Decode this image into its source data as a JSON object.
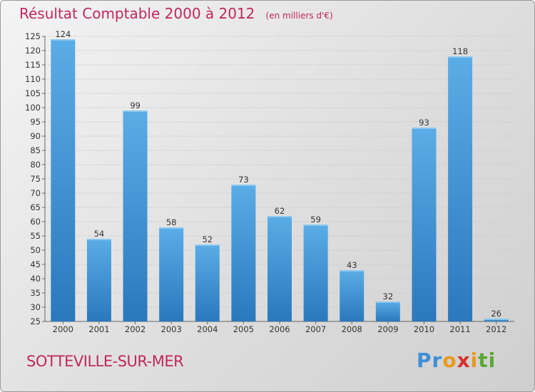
{
  "title": "Résultat Comptable 2000 à 2012",
  "unit_note": "(en milliers d'€)",
  "footer_label": "SOTTEVILLE-SUR-MER",
  "logo": {
    "letters": [
      "P",
      "r",
      "o",
      "x",
      "i",
      "t",
      "i"
    ],
    "colors": [
      "#3f8fd6",
      "#3f8fd6",
      "#e89a1c",
      "#d9302b",
      "#e89a1c",
      "#5aa832",
      "#5aa832"
    ]
  },
  "colors": {
    "bar_top": "#5aade6",
    "bar_bottom": "#2a78bd",
    "accent": "#c0285a"
  },
  "chart_data": {
    "type": "bar",
    "categories": [
      "2000",
      "2001",
      "2002",
      "2003",
      "2004",
      "2005",
      "2006",
      "2007",
      "2008",
      "2009",
      "2010",
      "2011",
      "2012"
    ],
    "values": [
      124,
      54,
      99,
      58,
      52,
      73,
      62,
      59,
      43,
      32,
      93,
      118,
      26
    ],
    "title": "Résultat Comptable 2000 à 2012",
    "ylim": [
      25,
      125
    ],
    "yticks": [
      25,
      30,
      35,
      40,
      45,
      50,
      55,
      60,
      65,
      70,
      75,
      80,
      85,
      90,
      95,
      100,
      105,
      110,
      115,
      120,
      125
    ],
    "grid": true
  }
}
